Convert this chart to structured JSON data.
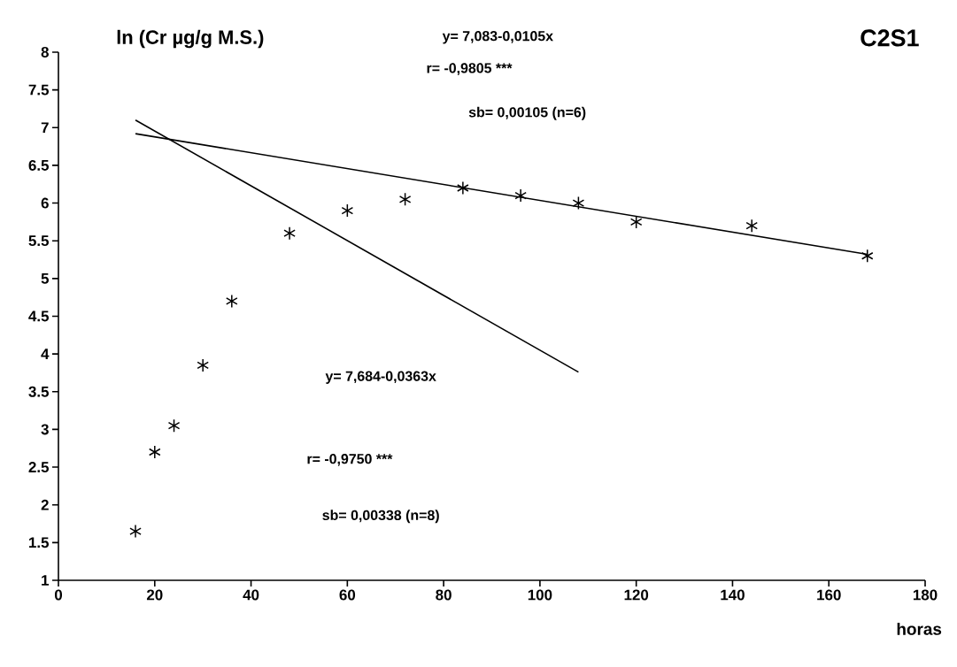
{
  "chart_data": {
    "type": "scatter",
    "title": "C2S1",
    "ylabel": "ln (Cr µg/g M.S.)",
    "xlabel": "horas",
    "annotations": [
      "y= 7,083-0,0105x",
      "r= -0,9805  ***",
      "sb= 0,00105    (n=6)",
      "y= 7,684-0,0363x",
      "r= -0,9750  ***",
      "sb= 0,00338    (n=8)"
    ],
    "x": [
      16,
      20,
      24,
      30,
      36,
      48,
      60,
      72,
      84,
      96,
      108,
      120,
      144,
      168
    ],
    "series": [
      {
        "color": "#000000",
        "marker": "cross",
        "values": [
          1.65,
          2.7,
          3.05,
          3.85,
          4.7,
          5.6,
          5.9,
          6.05,
          6.2,
          6.1,
          6.0,
          5.75,
          5.7,
          5.3
        ]
      },
      {
        "type": "line",
        "color": "#000000",
        "line_style": "solid",
        "x": [
          16,
          168
        ],
        "values": [
          6.92,
          5.32
        ]
      },
      {
        "type": "line",
        "color": "#000000",
        "line_style": "solid",
        "x": [
          16,
          108
        ],
        "values": [
          7.1,
          3.76
        ]
      }
    ],
    "xlim": [
      0,
      180
    ],
    "ylim": [
      1,
      8
    ],
    "xticks": [
      0,
      20,
      40,
      60,
      80,
      100,
      120,
      140,
      160,
      180
    ],
    "yticks": [
      1,
      1.5,
      2,
      2.5,
      3,
      3.5,
      4,
      4.5,
      5,
      5.5,
      6,
      6.5,
      7,
      7.5,
      8
    ],
    "grid": false
  }
}
